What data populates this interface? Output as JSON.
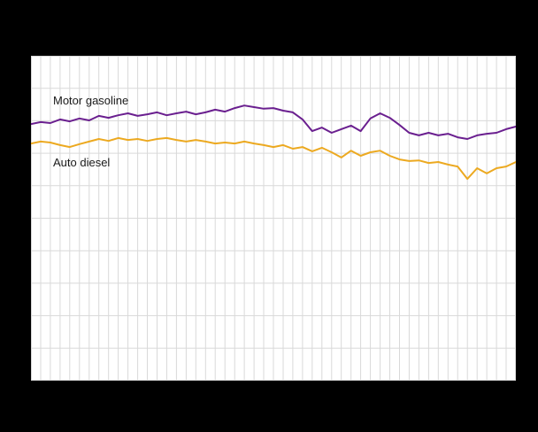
{
  "chart_data": {
    "type": "line",
    "title": "",
    "xlabel": "",
    "ylabel": "",
    "x_unit": "week",
    "x": [
      1,
      2,
      3,
      4,
      5,
      6,
      7,
      8,
      9,
      10,
      11,
      12,
      13,
      14,
      15,
      16,
      17,
      18,
      19,
      20,
      21,
      22,
      23,
      24,
      25,
      26,
      27,
      28,
      29,
      30,
      31,
      32,
      33,
      34,
      35,
      36,
      37,
      38,
      39,
      40,
      41,
      42,
      43,
      44,
      45,
      46,
      47,
      48,
      49,
      50,
      51
    ],
    "ylim": [
      0,
      100
    ],
    "grid": true,
    "legend_position": "inline-labels",
    "page_background": "#000000",
    "plot_background": "#ffffff",
    "gridline_color": "#d9d9d9",
    "series": [
      {
        "name": "Motor gasoline",
        "color": "#6a1f8f",
        "values": [
          79.0,
          79.6,
          79.3,
          80.4,
          79.8,
          80.7,
          80.1,
          81.5,
          80.9,
          81.7,
          82.3,
          81.5,
          82.0,
          82.6,
          81.7,
          82.3,
          82.8,
          82.0,
          82.6,
          83.4,
          82.8,
          83.9,
          84.7,
          84.2,
          83.7,
          83.9,
          83.1,
          82.6,
          80.4,
          76.8,
          77.9,
          76.3,
          77.4,
          78.5,
          76.8,
          80.7,
          82.3,
          80.9,
          78.7,
          76.3,
          75.5,
          76.3,
          75.5,
          76.0,
          74.9,
          74.4,
          75.5,
          76.0,
          76.3,
          77.4,
          78.2
        ]
      },
      {
        "name": "Auto diesel",
        "color": "#eca920",
        "values": [
          73.0,
          73.6,
          73.3,
          72.5,
          71.9,
          72.8,
          73.6,
          74.4,
          73.8,
          74.7,
          74.1,
          74.4,
          73.8,
          74.4,
          74.7,
          74.1,
          73.6,
          74.1,
          73.6,
          73.0,
          73.3,
          73.0,
          73.6,
          73.0,
          72.5,
          71.9,
          72.5,
          71.4,
          71.9,
          70.6,
          71.7,
          70.3,
          68.7,
          70.8,
          69.2,
          70.3,
          70.8,
          69.2,
          68.1,
          67.6,
          67.8,
          67.0,
          67.3,
          66.5,
          65.9,
          62.1,
          65.4,
          63.8,
          65.4,
          65.9,
          67.3
        ]
      }
    ]
  }
}
